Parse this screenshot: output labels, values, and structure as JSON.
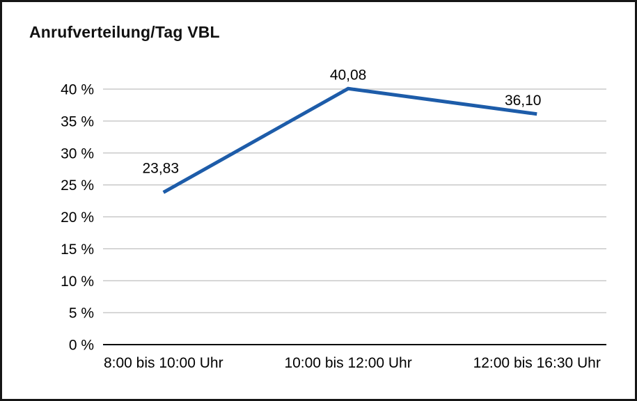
{
  "chart_data": {
    "type": "line",
    "title": "Anrufverteilung/Tag VBL",
    "categories": [
      "8:00 bis 10:00 Uhr",
      "10:00 bis 12:00 Uhr",
      "12:00 bis 16:30 Uhr"
    ],
    "values": [
      23.83,
      40.08,
      36.1
    ],
    "point_labels": [
      "23,83",
      "40,08",
      "36,10"
    ],
    "xlabel": "",
    "ylabel": "",
    "ylim": [
      0,
      40
    ],
    "y_tick_step": 5,
    "y_tick_labels": [
      "0 %",
      "5 %",
      "10 %",
      "15 %",
      "20 %",
      "25 %",
      "30 %",
      "35 %",
      "40 %"
    ],
    "grid": "horizontal",
    "legend": "none",
    "line_color": "#1d5ca9",
    "grid_color": "#bfbfbf",
    "axis_color": "#000000",
    "text_color": "#000000",
    "background": "#ffffff",
    "border_color": "#161616"
  }
}
